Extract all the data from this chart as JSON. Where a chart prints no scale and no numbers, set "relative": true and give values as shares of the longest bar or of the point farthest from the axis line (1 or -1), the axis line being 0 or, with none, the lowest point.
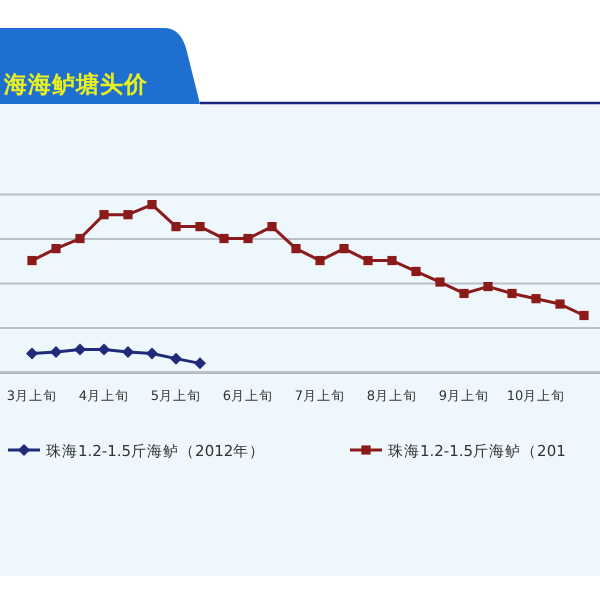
{
  "chart_data": {
    "type": "line",
    "title": "海海鲈塘头价",
    "relative": true,
    "grid": "y",
    "legend": "bottom",
    "categories": [
      "3月上旬",
      null,
      null,
      "4月上旬",
      null,
      null,
      "5月上旬",
      null,
      null,
      "6月上旬",
      null,
      null,
      "7月上旬",
      null,
      null,
      "8月上旬",
      null,
      null,
      "9月上旬",
      null,
      null,
      "10月上旬",
      null,
      null
    ],
    "series": [
      {
        "name": "珠海1.2-1.5斤海鲈（2012年）",
        "color": "#1f2a7a",
        "marker": "diamond",
        "values": [
          0.114,
          0.123,
          0.138,
          0.138,
          0.123,
          0.114,
          0.083,
          0.055,
          null,
          null,
          null,
          null,
          null,
          null,
          null,
          null,
          null,
          null,
          null,
          null,
          null,
          null,
          null,
          null
        ]
      },
      {
        "name": "珠海1.2-1.5斤海鲈（201",
        "color": "#8b1a1a",
        "marker": "square",
        "values": [
          0.667,
          0.738,
          0.798,
          0.94,
          0.94,
          1,
          0.869,
          0.869,
          0.798,
          0.798,
          0.869,
          0.738,
          0.667,
          0.738,
          0.667,
          0.667,
          0.602,
          0.539,
          0.471,
          0.512,
          0.471,
          0.44,
          0.408,
          0.34
        ]
      }
    ]
  }
}
